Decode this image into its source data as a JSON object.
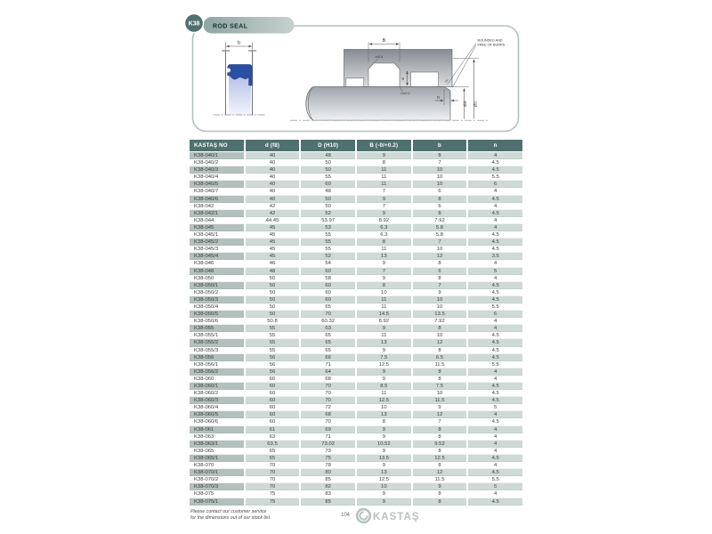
{
  "page": {
    "badge": "K38",
    "title": "ROD SEAL",
    "footer": {
      "note_line1": "Please contact our customer service",
      "note_line2": "for the dimensions out of our stock list.",
      "page_number": "104",
      "brand": "KASTAŞ"
    }
  },
  "drawing": {
    "labels": {
      "b": "b",
      "B": "B",
      "r_top": "r≤0.4",
      "gap_symbol": "ø",
      "r_bottom": "r1≤0.2",
      "n": "n",
      "dia_rod": "Ød",
      "dia_bore": "ØD",
      "angle": "15°",
      "burrs_line1": "ROUNDED AND",
      "burrs_line2": "FREE OF BURRS"
    },
    "colors": {
      "accent_teal": "#4f706e",
      "seal_blue": "#2b4fa3",
      "row_shade": "#cfd9d5",
      "row_shade_first": "#b4c0bd",
      "logo_gray": "#b7c2bf"
    }
  },
  "table": {
    "headers": [
      "KASTAŞ NO",
      "d (f8)",
      "D (H10)",
      "B (-0/+0.2)",
      "b",
      "n"
    ],
    "rows": [
      [
        "K38-040/1",
        "40",
        "48",
        "9",
        "8",
        "4"
      ],
      [
        "K38-040/2",
        "40",
        "50",
        "8",
        "7",
        "4.5"
      ],
      [
        "K38-040/3",
        "40",
        "50",
        "11",
        "10",
        "4.5"
      ],
      [
        "K38-040/4",
        "40",
        "55",
        "11",
        "10",
        "5.5"
      ],
      [
        "K38-040/5",
        "40",
        "60",
        "11",
        "10",
        "6"
      ],
      [
        "K38-040/7",
        "40",
        "48",
        "7",
        "6",
        "4"
      ],
      [
        "K38-040/6",
        "40",
        "50",
        "9",
        "8",
        "4.5"
      ],
      [
        "K38-042",
        "42",
        "50",
        "7",
        "6",
        "4"
      ],
      [
        "K38-042/1",
        "42",
        "52",
        "9",
        "8",
        "4.5"
      ],
      [
        "K38-044",
        "44.45",
        "53.97",
        "8.92",
        "7.92",
        "4"
      ],
      [
        "K38-045",
        "45",
        "53",
        "6.3",
        "5.8",
        "4"
      ],
      [
        "K38-045/1",
        "45",
        "55",
        "6.3",
        "5.8",
        "4.5"
      ],
      [
        "K38-045/2",
        "45",
        "55",
        "8",
        "7",
        "4.5"
      ],
      [
        "K38-045/3",
        "45",
        "55",
        "11",
        "10",
        "4.5"
      ],
      [
        "K38-045/4",
        "45",
        "52",
        "13",
        "12",
        "3.5"
      ],
      [
        "K38-046",
        "46",
        "54",
        "9",
        "8",
        "4"
      ],
      [
        "K38-048",
        "48",
        "60",
        "7",
        "6",
        "5"
      ],
      [
        "K38-050",
        "50",
        "58",
        "9",
        "8",
        "4"
      ],
      [
        "K38-050/1",
        "50",
        "60",
        "8",
        "7",
        "4.5"
      ],
      [
        "K38-050/2",
        "50",
        "60",
        "10",
        "9",
        "4.5"
      ],
      [
        "K38-050/3",
        "50",
        "60",
        "11",
        "10",
        "4.5"
      ],
      [
        "K38-050/4",
        "50",
        "65",
        "11",
        "10",
        "5.5"
      ],
      [
        "K38-050/5",
        "50",
        "70",
        "14.5",
        "13.5",
        "6"
      ],
      [
        "K38-050/6",
        "50.8",
        "60.32",
        "8.92",
        "7.92",
        "4"
      ],
      [
        "K38-055",
        "55",
        "63",
        "9",
        "8",
        "4"
      ],
      [
        "K38-055/1",
        "55",
        "65",
        "11",
        "10",
        "4.5"
      ],
      [
        "K38-055/2",
        "55",
        "65",
        "13",
        "12",
        "4.5"
      ],
      [
        "K38-055/3",
        "55",
        "65",
        "9",
        "8",
        "4.5"
      ],
      [
        "K38-056",
        "56",
        "66",
        "7.5",
        "6.5",
        "4.5"
      ],
      [
        "K38-056/1",
        "56",
        "71",
        "12.5",
        "11.5",
        "5.5"
      ],
      [
        "K38-056/2",
        "56",
        "64",
        "9",
        "8",
        "4"
      ],
      [
        "K38-060",
        "60",
        "68",
        "9",
        "8",
        "4"
      ],
      [
        "K38-060/1",
        "60",
        "70",
        "8.5",
        "7.5",
        "4.5"
      ],
      [
        "K38-060/2",
        "60",
        "70",
        "11",
        "10",
        "4.5"
      ],
      [
        "K38-060/3",
        "60",
        "70",
        "12.5",
        "11.5",
        "4.5"
      ],
      [
        "K38-060/4",
        "60",
        "72",
        "10",
        "9",
        "5"
      ],
      [
        "K38-060/5",
        "60",
        "68",
        "13",
        "12",
        "4"
      ],
      [
        "K38-060/6",
        "60",
        "70",
        "8",
        "7",
        "4.5"
      ],
      [
        "K38-061",
        "61",
        "69",
        "9",
        "8",
        "4"
      ],
      [
        "K38-063",
        "63",
        "71",
        "9",
        "8",
        "4"
      ],
      [
        "K38-063/1",
        "63.5",
        "73.02",
        "10.52",
        "9.52",
        "4"
      ],
      [
        "K38-065",
        "65",
        "73",
        "9",
        "8",
        "4"
      ],
      [
        "K38-065/1",
        "65",
        "75",
        "13.5",
        "12.5",
        "4.5"
      ],
      [
        "K38-070",
        "70",
        "78",
        "9",
        "8",
        "4"
      ],
      [
        "K38-070/1",
        "70",
        "80",
        "13",
        "12",
        "4.5"
      ],
      [
        "K38-070/2",
        "70",
        "85",
        "12.5",
        "11.5",
        "5.5"
      ],
      [
        "K38-070/3",
        "70",
        "82",
        "10",
        "9",
        "5"
      ],
      [
        "K38-075",
        "75",
        "83",
        "9",
        "8",
        "4"
      ],
      [
        "K38-075/1",
        "75",
        "85",
        "9",
        "8",
        "4.5"
      ]
    ]
  }
}
